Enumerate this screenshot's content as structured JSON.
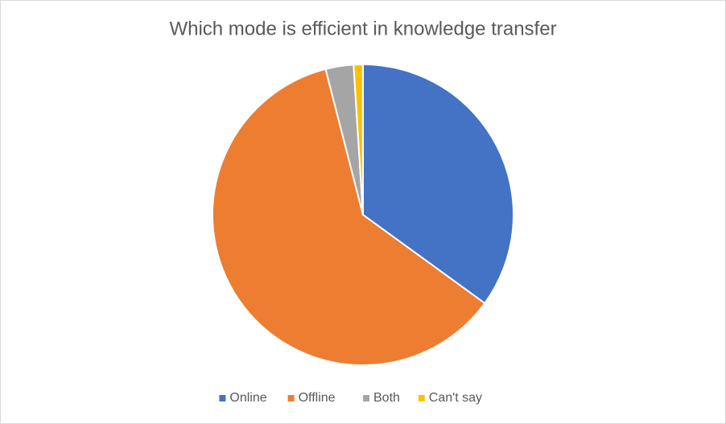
{
  "chart_data": {
    "type": "pie",
    "title": "Which mode is efficient in knowledge transfer",
    "categories": [
      "Online",
      "Offline",
      "Both",
      "Can't say"
    ],
    "values": [
      35,
      61,
      3,
      1
    ],
    "colors": [
      "#4472c4",
      "#ed7d31",
      "#a5a5a5",
      "#ffc000"
    ],
    "legend": "bottom"
  }
}
